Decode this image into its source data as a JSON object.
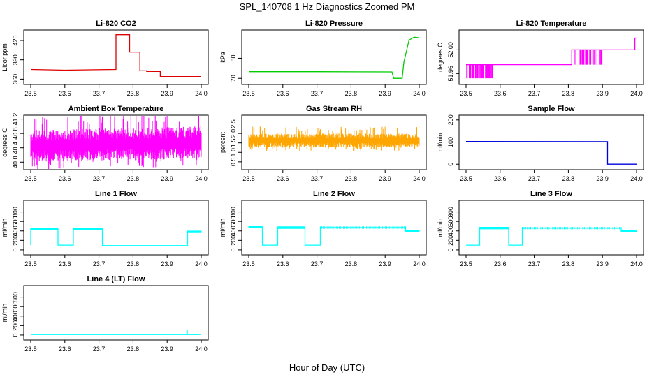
{
  "figure": {
    "title": "SPL_140708  1 Hz Diagnostics Zoomed PM",
    "xlabel": "Hour of Day (UTC)"
  },
  "chart_data": [
    {
      "type": "line",
      "title": "Li-820 CO2",
      "ylabel": "Licor ppm",
      "color": "#dd0000",
      "xlim": [
        23.5,
        24.0
      ],
      "xticks": [
        23.5,
        23.6,
        23.7,
        23.8,
        23.9,
        24.0
      ],
      "ylim": [
        355,
        433
      ],
      "yticks": [
        360,
        390,
        420
      ],
      "series": [
        {
          "x": [
            23.5,
            23.6,
            23.75,
            23.75,
            23.79,
            23.79,
            23.82,
            23.82,
            23.84,
            23.84,
            23.88,
            23.88,
            23.96,
            24.0
          ],
          "y": [
            375,
            374,
            375,
            429,
            429,
            402,
            402,
            373,
            373,
            372,
            372,
            364,
            364,
            364
          ]
        }
      ]
    },
    {
      "type": "line",
      "title": "Li-820 Pressure",
      "ylabel": "kPa",
      "color": "#00cc00",
      "xlim": [
        23.5,
        24.0
      ],
      "xticks": [
        23.5,
        23.6,
        23.7,
        23.8,
        23.9,
        24.0
      ],
      "ylim": [
        68,
        93
      ],
      "yticks": [
        70,
        80
      ],
      "series": [
        {
          "x": [
            23.5,
            23.7,
            23.92,
            23.925,
            23.95,
            23.955,
            23.97,
            23.985,
            24.0
          ],
          "y": [
            73.3,
            73.3,
            73.2,
            70.0,
            70.0,
            78.0,
            89.0,
            90.5,
            90.2
          ]
        }
      ]
    },
    {
      "type": "line",
      "title": "Li-820 Temperature",
      "ylabel": "degrees C",
      "color": "#ff00ff",
      "xlim": [
        23.5,
        24.0
      ],
      "xticks": [
        23.5,
        23.6,
        23.7,
        23.8,
        23.9,
        24.0
      ],
      "ylim": [
        51.945,
        52.03
      ],
      "yticks": [
        51.96,
        52.0
      ],
      "series": [
        {
          "x": [
            23.5,
            23.81,
            23.81,
            23.995,
            23.995,
            24.0
          ],
          "y": [
            51.975,
            51.975,
            52.0,
            52.0,
            52.02,
            52.02
          ]
        }
      ]
    },
    {
      "type": "area",
      "title": "Ambient Box Temperature",
      "ylabel": "degrees C",
      "color": "#ff00ff",
      "xlim": [
        23.5,
        24.0
      ],
      "xticks": [
        23.5,
        23.6,
        23.7,
        23.8,
        23.9,
        24.0
      ],
      "ylim": [
        39.85,
        41.25
      ],
      "yticks": [
        40.0,
        40.4,
        40.8,
        41.2
      ],
      "series": [
        {
          "x": [
            23.5,
            24.0
          ],
          "low": [
            40.0,
            40.1
          ],
          "high": [
            40.9,
            41.0
          ]
        }
      ]
    },
    {
      "type": "area",
      "title": "Gas Stream RH",
      "ylabel": "percent",
      "color": "#ffa500",
      "xlim": [
        23.5,
        24.0
      ],
      "xticks": [
        23.5,
        23.6,
        23.7,
        23.8,
        23.9,
        24.0
      ],
      "ylim": [
        0.2,
        2.85
      ],
      "yticks": [
        0.5,
        1.0,
        1.5,
        2.0,
        2.5
      ],
      "series": [
        {
          "x": [
            23.5,
            24.0
          ],
          "low": [
            1.25,
            1.25
          ],
          "high": [
            2.0,
            2.0
          ]
        }
      ]
    },
    {
      "type": "line",
      "title": "Sample Flow",
      "ylabel": "ml/min",
      "color": "#0000dd",
      "xlim": [
        23.5,
        24.0
      ],
      "xticks": [
        23.5,
        23.6,
        23.7,
        23.8,
        23.9,
        24.0
      ],
      "ylim": [
        -15,
        212
      ],
      "yticks": [
        0,
        100,
        200
      ],
      "series": [
        {
          "x": [
            23.5,
            23.915,
            23.915,
            24.0
          ],
          "y": [
            103,
            102,
            0,
            0
          ]
        }
      ]
    },
    {
      "type": "line",
      "title": "Line 1 Flow",
      "ylabel": "ml/min",
      "color": "#00ffff",
      "xlim": [
        23.5,
        24.0
      ],
      "xticks": [
        23.5,
        23.6,
        23.7,
        23.8,
        23.9,
        24.0
      ],
      "ylim": [
        -60,
        1000
      ],
      "yticks": [
        0,
        200,
        400,
        600,
        800
      ],
      "series": [
        {
          "x": [
            23.5,
            23.5,
            23.58,
            23.58,
            23.625,
            23.625,
            23.71,
            23.71,
            23.96,
            23.96,
            24.0
          ],
          "y": [
            100,
            440,
            440,
            100,
            100,
            440,
            440,
            90,
            90,
            380,
            380
          ]
        }
      ]
    },
    {
      "type": "line",
      "title": "Line 2 Flow",
      "ylabel": "ml/min",
      "color": "#00ffff",
      "xlim": [
        23.5,
        24.0
      ],
      "xticks": [
        23.5,
        23.6,
        23.7,
        23.8,
        23.9,
        24.0
      ],
      "ylim": [
        -60,
        1000
      ],
      "yticks": [
        0,
        200,
        400,
        600,
        800
      ],
      "series": [
        {
          "x": [
            23.5,
            23.54,
            23.54,
            23.585,
            23.585,
            23.665,
            23.665,
            23.71,
            23.71,
            23.96,
            23.96,
            24.0
          ],
          "y": [
            480,
            480,
            100,
            100,
            470,
            470,
            100,
            100,
            470,
            470,
            400,
            400
          ]
        }
      ]
    },
    {
      "type": "line",
      "title": "Line 3 Flow",
      "ylabel": "ml/min",
      "color": "#00ffff",
      "xlim": [
        23.5,
        24.0
      ],
      "xticks": [
        23.5,
        23.6,
        23.7,
        23.8,
        23.9,
        24.0
      ],
      "ylim": [
        -60,
        1000
      ],
      "yticks": [
        0,
        200,
        400,
        600,
        800
      ],
      "series": [
        {
          "x": [
            23.5,
            23.5,
            23.54,
            23.54,
            23.625,
            23.625,
            23.665,
            23.665,
            23.955,
            23.955,
            24.0
          ],
          "y": [
            100,
            100,
            100,
            460,
            460,
            100,
            100,
            460,
            460,
            400,
            400
          ]
        }
      ]
    },
    {
      "type": "line",
      "title": "Line 4 (LT) Flow",
      "ylabel": "ml/min",
      "color": "#00ffff",
      "xlim": [
        23.5,
        24.0
      ],
      "xticks": [
        23.5,
        23.6,
        23.7,
        23.8,
        23.9,
        24.0
      ],
      "ylim": [
        -60,
        1000
      ],
      "yticks": [
        0,
        200,
        400,
        600,
        800
      ],
      "series": [
        {
          "x": [
            23.5,
            23.958,
            23.958,
            23.959,
            23.959,
            24.0
          ],
          "y": [
            10,
            10,
            100,
            100,
            10,
            10
          ]
        }
      ]
    }
  ]
}
